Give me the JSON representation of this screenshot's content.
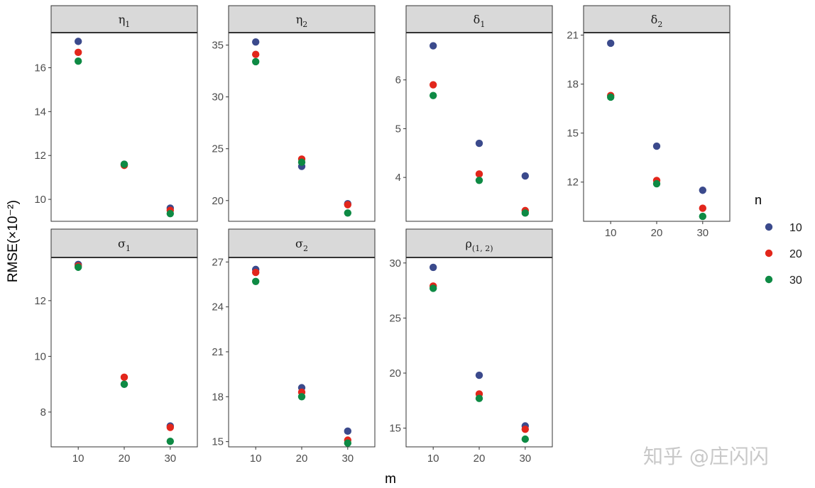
{
  "chart_data": {
    "type": "scatter",
    "layout": "facet-grid",
    "x_label": "m",
    "y_label": "RMSE(×10⁻²)",
    "x_categories": [
      "10",
      "20",
      "30"
    ],
    "legend": {
      "title": "n",
      "position": "right",
      "entries": [
        {
          "label": "10",
          "color": "#3b4a8c"
        },
        {
          "label": "20",
          "color": "#e2261b"
        },
        {
          "label": "30",
          "color": "#0e8a44"
        }
      ]
    },
    "grid": false,
    "watermark": "知乎 @庄闪闪",
    "panels": [
      {
        "label": "η",
        "sub": "1",
        "ylim": [
          9.0,
          17.6
        ],
        "yticks": [
          10,
          12,
          14,
          16
        ],
        "ytick_labels": [
          "10",
          "12",
          "14",
          "16"
        ],
        "series": [
          {
            "name": "10",
            "values": [
              17.2,
              11.6,
              9.6
            ]
          },
          {
            "name": "20",
            "values": [
              16.7,
              11.55,
              9.5
            ]
          },
          {
            "name": "30",
            "values": [
              16.3,
              11.6,
              9.35
            ]
          }
        ]
      },
      {
        "label": "η",
        "sub": "2",
        "ylim": [
          18.0,
          36.2
        ],
        "yticks": [
          20,
          25,
          30,
          35
        ],
        "ytick_labels": [
          "20",
          "25",
          "30",
          "35"
        ],
        "series": [
          {
            "name": "10",
            "values": [
              35.3,
              23.3,
              19.7
            ]
          },
          {
            "name": "20",
            "values": [
              34.1,
              24.0,
              19.6
            ]
          },
          {
            "name": "30",
            "values": [
              33.4,
              23.7,
              18.8
            ]
          }
        ]
      },
      {
        "label": "δ",
        "sub": "1",
        "ylim": [
          3.1,
          6.97
        ],
        "yticks": [
          4,
          5,
          6
        ],
        "ytick_labels": [
          "4",
          "5",
          "6"
        ],
        "series": [
          {
            "name": "10",
            "values": [
              6.7,
              4.7,
              4.03
            ]
          },
          {
            "name": "20",
            "values": [
              5.9,
              4.07,
              3.32
            ]
          },
          {
            "name": "30",
            "values": [
              5.68,
              3.94,
              3.27
            ]
          }
        ]
      },
      {
        "label": "δ",
        "sub": "2",
        "ylim": [
          9.6,
          21.15
        ],
        "yticks": [
          12,
          15,
          18,
          21
        ],
        "ytick_labels": [
          "12",
          "15",
          "18",
          "21"
        ],
        "series": [
          {
            "name": "10",
            "values": [
              20.5,
              14.2,
              11.5
            ]
          },
          {
            "name": "20",
            "values": [
              17.3,
              12.1,
              10.4
            ]
          },
          {
            "name": "30",
            "values": [
              17.2,
              11.9,
              9.9
            ]
          }
        ]
      },
      {
        "label": "σ",
        "sub": "1",
        "ylim": [
          6.75,
          13.55
        ],
        "yticks": [
          8,
          10,
          12
        ],
        "ytick_labels": [
          "8",
          "10",
          "12"
        ],
        "series": [
          {
            "name": "10",
            "values": [
              13.3,
              9.0,
              7.5
            ]
          },
          {
            "name": "20",
            "values": [
              13.25,
              9.25,
              7.45
            ]
          },
          {
            "name": "30",
            "values": [
              13.2,
              9.0,
              6.95
            ]
          }
        ]
      },
      {
        "label": "σ",
        "sub": "2",
        "ylim": [
          14.65,
          27.3
        ],
        "yticks": [
          15,
          18,
          21,
          24,
          27
        ],
        "ytick_labels": [
          "15",
          "18",
          "21",
          "24",
          "27"
        ],
        "series": [
          {
            "name": "10",
            "values": [
              26.5,
              18.6,
              15.7
            ]
          },
          {
            "name": "20",
            "values": [
              26.3,
              18.3,
              15.1
            ]
          },
          {
            "name": "30",
            "values": [
              25.7,
              18.0,
              14.9
            ]
          }
        ]
      },
      {
        "label": "ρ",
        "sub": "(1, 2)",
        "ylim": [
          13.3,
          30.5
        ],
        "yticks": [
          15,
          20,
          25,
          30
        ],
        "ytick_labels": [
          "15",
          "20",
          "25",
          "30"
        ],
        "series": [
          {
            "name": "10",
            "values": [
              29.6,
              19.8,
              15.2
            ]
          },
          {
            "name": "20",
            "values": [
              27.9,
              18.1,
              14.9
            ]
          },
          {
            "name": "30",
            "values": [
              27.7,
              17.7,
              14.0
            ]
          }
        ]
      }
    ]
  }
}
